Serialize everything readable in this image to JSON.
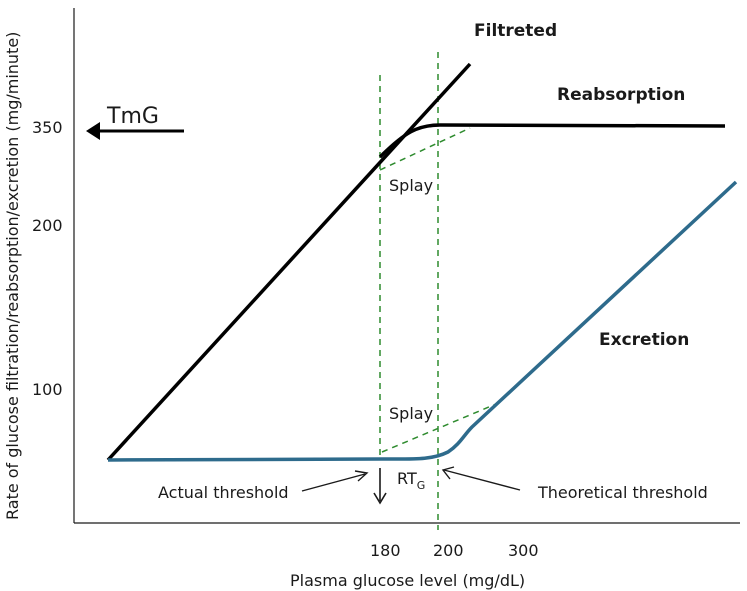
{
  "chart_data": {
    "type": "line",
    "title": "",
    "xlabel": "Plasma glucose level (mg/dL)",
    "ylabel": "Rate of glucose filtration/reabsorption/excretion (mg/minute)",
    "x_ticks": [
      180,
      200,
      300
    ],
    "y_ticks": [
      100,
      200,
      350
    ],
    "series": [
      {
        "name": "Filtreted",
        "color": "#000000"
      },
      {
        "name": "Reabsorption",
        "color": "#000000"
      },
      {
        "name": "Excretion",
        "color": "#2e6b8c"
      }
    ],
    "annotations": {
      "tmg": "TmG",
      "splay_upper": "Splay",
      "splay_lower": "Splay",
      "rtg": "RT",
      "rtg_sub": "G",
      "actual_threshold": "Actual threshold",
      "theoretical_threshold": "Theoretical threshold"
    },
    "guide_color": "#2e8b2e"
  }
}
